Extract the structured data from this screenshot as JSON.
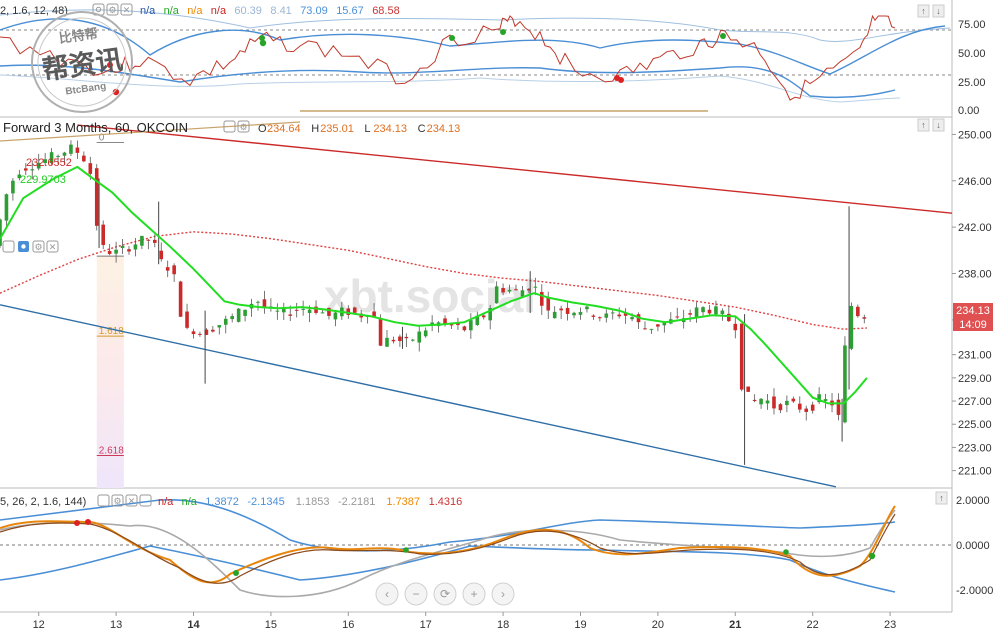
{
  "colors": {
    "candle_up": "#2e9e34",
    "candle_down": "#cc2a2a",
    "ma_fast": "#22dd22",
    "ma_slow": "#e04040",
    "trend_upper": "#cc2a2a",
    "trend_lower": "#2f6fa7",
    "axis_text": "#333333",
    "grid_major": "#d8d8d8",
    "price_badge": "#e05050",
    "fib_fill_top": "#fdeede",
    "fib_fill_bottom": "#efe6fb"
  },
  "top_panel": {
    "header_prefix": "2, 1.6, 12, 48)",
    "values": [
      {
        "text": "n/a",
        "color": "#2255aa"
      },
      {
        "text": "n/a",
        "color": "#22aa22"
      },
      {
        "text": "n/a",
        "color": "#ee8800"
      },
      {
        "text": "n/a",
        "color": "#cc2222"
      },
      {
        "text": "60.39",
        "color": "#9ab6d6"
      },
      {
        "text": "8.41",
        "color": "#9ab6d6"
      },
      {
        "text": "73.09",
        "color": "#4a90d9"
      },
      {
        "text": "15.67",
        "color": "#4a90d9"
      },
      {
        "text": "68.58",
        "color": "#cc3333"
      }
    ],
    "y_ticks": [
      "75.00",
      "50.00",
      "25.00",
      "0.00"
    ]
  },
  "main_panel": {
    "title": "Forward 3 Months, 60, OKCOIN",
    "ohlc": [
      {
        "label": "O",
        "value": "234.64"
      },
      {
        "label": "H",
        "value": "235.01"
      },
      {
        "label": "L",
        "value": "234.13"
      },
      {
        "label": "C",
        "value": "234.13"
      }
    ],
    "ma_label_1": "232.6552",
    "ma_label_2": "229.9703",
    "fib_labels": [
      "0",
      "1.618",
      "2.618"
    ],
    "price_badge": "234.13",
    "time_badge": "14:09",
    "watermark": "xbt.social"
  },
  "bottom_panel": {
    "header_prefix": "5, 26, 2, 1.6, 144)",
    "values": [
      {
        "text": "n/a",
        "color": "#cc2222"
      },
      {
        "text": "n/a",
        "color": "#22aa22"
      },
      {
        "text": "1.3872",
        "color": "#4a90d9"
      },
      {
        "text": "-2.1345",
        "color": "#4a90d9"
      },
      {
        "text": "1.1853",
        "color": "#999999"
      },
      {
        "text": "-2.2181",
        "color": "#999999"
      },
      {
        "text": "1.7387",
        "color": "#ee8800"
      },
      {
        "text": "1.4316",
        "color": "#cc3333"
      }
    ],
    "y_ticks": [
      "2.0000",
      "0.0000",
      "-2.0000"
    ]
  },
  "logo": {
    "top_text": "比特帮",
    "main_text": "帮资讯",
    "sub_text": "BtcBang"
  },
  "nav_buttons": [
    "‹",
    "−",
    "⟳",
    "+",
    "›"
  ],
  "chart_data": {
    "type": "candlestick",
    "x_axis": {
      "tick_labels": [
        "12",
        "13",
        "14",
        "15",
        "16",
        "17",
        "18",
        "19",
        "20",
        "21",
        "22",
        "23"
      ],
      "bold_ticks": [
        "14",
        "21"
      ],
      "range_days": [
        11.5,
        23.8
      ]
    },
    "y_axis": {
      "tick_labels": [
        "250.00",
        "246.00",
        "242.00",
        "238.00",
        "234.00",
        "231.00",
        "229.00",
        "227.00",
        "225.00",
        "223.00",
        "221.00"
      ],
      "range": [
        219.5,
        251.5
      ]
    },
    "price_path": [
      [
        11.5,
        241.5
      ],
      [
        11.65,
        245.5
      ],
      [
        11.8,
        247
      ],
      [
        12.0,
        247.5
      ],
      [
        12.2,
        248
      ],
      [
        12.45,
        248.8
      ],
      [
        12.6,
        248.3
      ],
      [
        12.72,
        246.5
      ],
      [
        12.78,
        243
      ],
      [
        12.82,
        240.5
      ],
      [
        12.9,
        240
      ],
      [
        13.05,
        239.8
      ],
      [
        13.2,
        240.3
      ],
      [
        13.35,
        240.8
      ],
      [
        13.5,
        241
      ],
      [
        13.62,
        239
      ],
      [
        13.72,
        238.5
      ],
      [
        13.8,
        237.5
      ],
      [
        13.88,
        234.5
      ],
      [
        13.95,
        233
      ],
      [
        14.05,
        233.2
      ],
      [
        14.15,
        232.8
      ],
      [
        14.3,
        233.4
      ],
      [
        14.5,
        234
      ],
      [
        14.7,
        235
      ],
      [
        14.85,
        235.8
      ],
      [
        15.0,
        234.8
      ],
      [
        15.2,
        234.5
      ],
      [
        15.4,
        235
      ],
      [
        15.6,
        235
      ],
      [
        15.8,
        234.3
      ],
      [
        16.0,
        234.8
      ],
      [
        16.2,
        234.4
      ],
      [
        16.35,
        235
      ],
      [
        16.45,
        232
      ],
      [
        16.6,
        232.4
      ],
      [
        16.8,
        232
      ],
      [
        17.0,
        233
      ],
      [
        17.15,
        233.8
      ],
      [
        17.35,
        233.5
      ],
      [
        17.55,
        233.2
      ],
      [
        17.7,
        234
      ],
      [
        17.85,
        234.6
      ],
      [
        17.95,
        236.8
      ],
      [
        18.1,
        236.6
      ],
      [
        18.25,
        236.4
      ],
      [
        18.4,
        237
      ],
      [
        18.5,
        236.5
      ],
      [
        18.6,
        234.5
      ],
      [
        18.75,
        235
      ],
      [
        18.9,
        234.8
      ],
      [
        19.05,
        234.9
      ],
      [
        19.2,
        234.6
      ],
      [
        19.35,
        234.2
      ],
      [
        19.5,
        234.6
      ],
      [
        19.7,
        234.3
      ],
      [
        19.85,
        233.2
      ],
      [
        20.0,
        233.5
      ],
      [
        20.15,
        233.8
      ],
      [
        20.3,
        234
      ],
      [
        20.45,
        234.5
      ],
      [
        20.6,
        235
      ],
      [
        20.75,
        234.9
      ],
      [
        20.9,
        234.3
      ],
      [
        21.05,
        233.5
      ],
      [
        21.12,
        228.5
      ],
      [
        21.25,
        226.8
      ],
      [
        21.4,
        227.3
      ],
      [
        21.55,
        226.5
      ],
      [
        21.7,
        226.8
      ],
      [
        21.85,
        226.5
      ],
      [
        22.0,
        226.2
      ],
      [
        22.1,
        227.2
      ],
      [
        22.2,
        227
      ],
      [
        22.3,
        226.8
      ],
      [
        22.38,
        225.5
      ],
      [
        22.45,
        231
      ],
      [
        22.52,
        235.5
      ],
      [
        22.6,
        234.6
      ],
      [
        22.7,
        234.4
      ]
    ],
    "spikes": [
      {
        "day": 12.78,
        "low": 240.2,
        "high": 246.2
      },
      {
        "day": 13.55,
        "low": 238.8,
        "high": 244.2
      },
      {
        "day": 14.15,
        "low": 228.5,
        "high": 234.8
      },
      {
        "day": 16.7,
        "low": 231.5,
        "high": 233.4
      },
      {
        "day": 18.35,
        "low": 234.6,
        "high": 238.2
      },
      {
        "day": 21.12,
        "low": 221.5,
        "high": 234.5
      },
      {
        "day": 22.38,
        "low": 223.5,
        "high": 227.2
      },
      {
        "day": 22.47,
        "low": 228,
        "high": 243.8
      }
    ],
    "series": [
      {
        "kind": "ma_fast",
        "points": [
          [
            11.5,
            241
          ],
          [
            11.8,
            244.5
          ],
          [
            12.2,
            246.2
          ],
          [
            12.5,
            247.2
          ],
          [
            12.7,
            246.2
          ],
          [
            12.95,
            245
          ],
          [
            13.2,
            243.3
          ],
          [
            13.45,
            241.8
          ],
          [
            13.7,
            240.3
          ],
          [
            14.0,
            238.4
          ],
          [
            14.2,
            237
          ],
          [
            14.4,
            235.6
          ],
          [
            14.6,
            235.3
          ],
          [
            14.85,
            235.1
          ],
          [
            15.1,
            235
          ],
          [
            15.4,
            235.1
          ],
          [
            15.7,
            234.9
          ],
          [
            16.0,
            234.6
          ],
          [
            16.3,
            234.3
          ],
          [
            16.6,
            233.8
          ],
          [
            16.9,
            233.5
          ],
          [
            17.2,
            233.6
          ],
          [
            17.5,
            233.8
          ],
          [
            17.8,
            234.7
          ],
          [
            18.1,
            235.6
          ],
          [
            18.4,
            236.3
          ],
          [
            18.6,
            235.9
          ],
          [
            18.9,
            235.5
          ],
          [
            19.2,
            235.2
          ],
          [
            19.5,
            234.8
          ],
          [
            19.8,
            234.1
          ],
          [
            20.1,
            233.8
          ],
          [
            20.4,
            234.1
          ],
          [
            20.7,
            234.4
          ],
          [
            21.0,
            234.3
          ],
          [
            21.2,
            233.2
          ],
          [
            21.4,
            231.8
          ],
          [
            21.6,
            230.3
          ],
          [
            21.8,
            228.8
          ],
          [
            22.0,
            227.3
          ],
          [
            22.2,
            226.8
          ],
          [
            22.4,
            226.8
          ],
          [
            22.55,
            227.8
          ],
          [
            22.7,
            229
          ]
        ]
      },
      {
        "kind": "ma_slow",
        "points": [
          [
            11.5,
            236.3
          ],
          [
            12.0,
            237.8
          ],
          [
            12.5,
            239.2
          ],
          [
            13.0,
            240.3
          ],
          [
            13.5,
            241.2
          ],
          [
            14.0,
            241.6
          ],
          [
            14.5,
            241.4
          ],
          [
            15.0,
            241
          ],
          [
            15.5,
            240.5
          ],
          [
            16.0,
            240
          ],
          [
            16.5,
            239.3
          ],
          [
            17.0,
            238.6
          ],
          [
            17.5,
            238
          ],
          [
            18.0,
            237.6
          ],
          [
            18.5,
            237.3
          ],
          [
            19.0,
            236.9
          ],
          [
            19.5,
            236.5
          ],
          [
            20.0,
            236.1
          ],
          [
            20.5,
            235.6
          ],
          [
            21.0,
            235.1
          ],
          [
            21.5,
            234.4
          ],
          [
            22.0,
            233.6
          ],
          [
            22.4,
            233.2
          ],
          [
            22.7,
            233.3
          ]
        ]
      },
      {
        "kind": "trend_upper",
        "points": [
          [
            12.5,
            250.8
          ],
          [
            23.8,
            243.2
          ]
        ]
      },
      {
        "kind": "trend_lower",
        "points": [
          [
            11.5,
            235.3
          ],
          [
            22.3,
            219.6
          ]
        ]
      }
    ],
    "fib_levels": [
      {
        "label": "0",
        "value": 249.3
      },
      {
        "label": "1.618",
        "value": 232.6
      },
      {
        "label": "2.618",
        "value": 222.3
      }
    ],
    "fib_x_range": [
      12.75,
      13.1
    ]
  }
}
